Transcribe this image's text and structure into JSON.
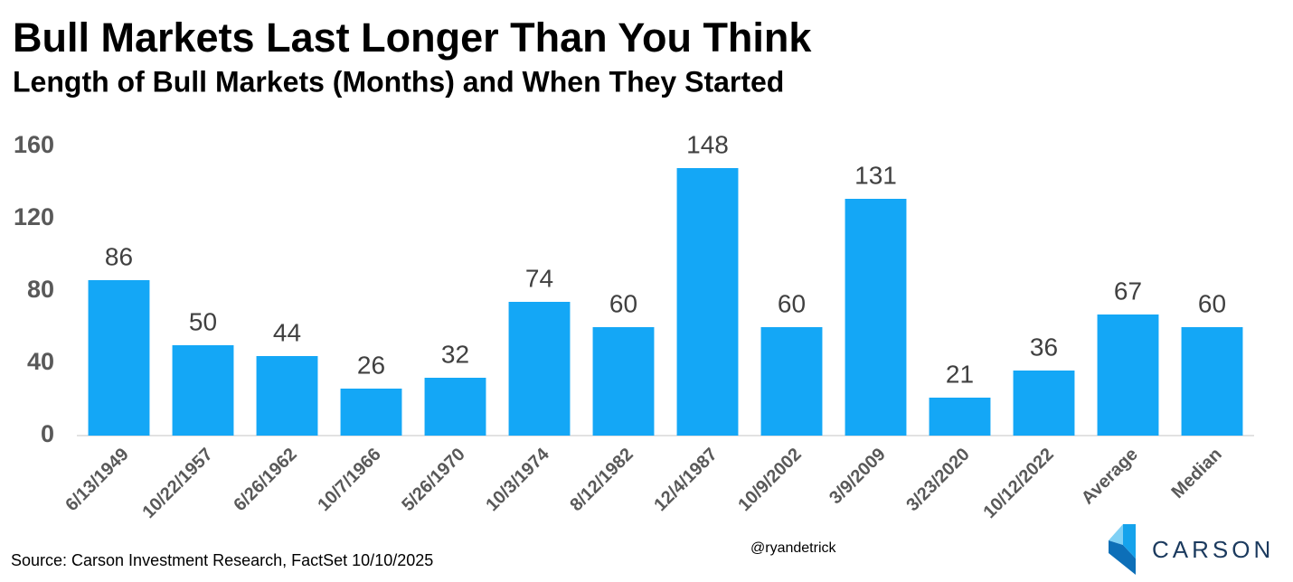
{
  "chart_data": {
    "type": "bar",
    "title": "Bull Markets Last Longer Than You Think",
    "subtitle": "Length of Bull Markets (Months) and When They Started",
    "categories": [
      "6/13/1949",
      "10/22/1957",
      "6/26/1962",
      "10/7/1966",
      "5/26/1970",
      "10/3/1974",
      "8/12/1982",
      "12/4/1987",
      "10/9/2002",
      "3/9/2009",
      "3/23/2020",
      "10/12/2022",
      "Average",
      "Median"
    ],
    "values": [
      86,
      50,
      44,
      26,
      32,
      74,
      60,
      148,
      60,
      131,
      21,
      36,
      67,
      60
    ],
    "color": "#14a7f6",
    "ylim": [
      0,
      160
    ],
    "yticks": [
      0,
      40,
      80,
      120,
      160
    ],
    "grid": false,
    "source": "Source: Carson Investment Research, FactSet 10/10/2025",
    "handle": "@ryandetrick",
    "logo": "CARSON"
  }
}
